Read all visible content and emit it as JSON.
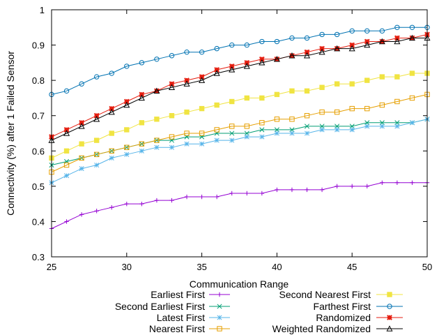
{
  "chart_data": {
    "type": "line",
    "title": "",
    "xlabel": "Communication Range",
    "ylabel": "Connectivity (%) after 1 Failed Sensor",
    "xlim": [
      25,
      50
    ],
    "ylim": [
      0.3,
      1.0
    ],
    "x_ticks": [
      "25",
      "30",
      "35",
      "40",
      "45",
      "50"
    ],
    "y_ticks": [
      "0.3",
      "0.4",
      "0.5",
      "0.6",
      "0.7",
      "0.8",
      "0.9",
      "1"
    ],
    "grid": false,
    "legend_position": "bottom",
    "x": [
      25,
      26,
      27,
      28,
      29,
      30,
      31,
      32,
      33,
      34,
      35,
      36,
      37,
      38,
      39,
      40,
      41,
      42,
      43,
      44,
      45,
      46,
      47,
      48,
      49,
      50
    ],
    "series": [
      {
        "name": "Earliest First",
        "color": "#9400d3",
        "marker": "plus",
        "values": [
          0.38,
          0.4,
          0.42,
          0.43,
          0.44,
          0.45,
          0.45,
          0.46,
          0.46,
          0.47,
          0.47,
          0.47,
          0.48,
          0.48,
          0.48,
          0.49,
          0.49,
          0.49,
          0.49,
          0.5,
          0.5,
          0.5,
          0.51,
          0.51,
          0.51,
          0.51
        ]
      },
      {
        "name": "Second Earliest First",
        "color": "#009e73",
        "marker": "x",
        "values": [
          0.56,
          0.57,
          0.58,
          0.59,
          0.6,
          0.61,
          0.62,
          0.63,
          0.63,
          0.64,
          0.64,
          0.65,
          0.65,
          0.65,
          0.66,
          0.66,
          0.66,
          0.67,
          0.67,
          0.67,
          0.67,
          0.68,
          0.68,
          0.68,
          0.68,
          0.69
        ]
      },
      {
        "name": "Latest First",
        "color": "#56b4e9",
        "marker": "star",
        "values": [
          0.51,
          0.53,
          0.55,
          0.56,
          0.58,
          0.59,
          0.6,
          0.61,
          0.61,
          0.62,
          0.62,
          0.63,
          0.63,
          0.64,
          0.64,
          0.65,
          0.65,
          0.65,
          0.66,
          0.66,
          0.66,
          0.67,
          0.67,
          0.67,
          0.68,
          0.69
        ]
      },
      {
        "name": "Nearest First",
        "color": "#e69f00",
        "marker": "square-open",
        "values": [
          0.54,
          0.56,
          0.58,
          0.59,
          0.6,
          0.61,
          0.62,
          0.63,
          0.64,
          0.65,
          0.65,
          0.66,
          0.67,
          0.67,
          0.68,
          0.69,
          0.69,
          0.7,
          0.71,
          0.71,
          0.72,
          0.72,
          0.73,
          0.74,
          0.75,
          0.76
        ]
      },
      {
        "name": "Second Nearest First",
        "color": "#f0e442",
        "marker": "square-filled",
        "values": [
          0.58,
          0.6,
          0.62,
          0.63,
          0.65,
          0.66,
          0.68,
          0.69,
          0.7,
          0.71,
          0.72,
          0.73,
          0.74,
          0.75,
          0.75,
          0.76,
          0.77,
          0.77,
          0.78,
          0.79,
          0.79,
          0.8,
          0.81,
          0.81,
          0.82,
          0.82
        ]
      },
      {
        "name": "Farthest First",
        "color": "#0072b2",
        "marker": "circle-open",
        "values": [
          0.76,
          0.77,
          0.79,
          0.81,
          0.82,
          0.84,
          0.85,
          0.86,
          0.87,
          0.88,
          0.88,
          0.89,
          0.9,
          0.9,
          0.91,
          0.91,
          0.92,
          0.92,
          0.93,
          0.93,
          0.94,
          0.94,
          0.94,
          0.95,
          0.95,
          0.95
        ]
      },
      {
        "name": "Randomized",
        "color": "#e51e10",
        "marker": "asterisk",
        "values": [
          0.64,
          0.66,
          0.68,
          0.7,
          0.72,
          0.74,
          0.76,
          0.77,
          0.79,
          0.8,
          0.81,
          0.83,
          0.84,
          0.85,
          0.86,
          0.86,
          0.87,
          0.88,
          0.89,
          0.89,
          0.9,
          0.91,
          0.91,
          0.92,
          0.92,
          0.93
        ]
      },
      {
        "name": "Weighted Randomized",
        "color": "#000000",
        "marker": "triangle-open",
        "values": [
          0.63,
          0.65,
          0.67,
          0.69,
          0.71,
          0.73,
          0.75,
          0.77,
          0.78,
          0.79,
          0.8,
          0.82,
          0.83,
          0.84,
          0.85,
          0.86,
          0.87,
          0.87,
          0.88,
          0.89,
          0.89,
          0.9,
          0.91,
          0.91,
          0.92,
          0.92
        ]
      }
    ]
  }
}
